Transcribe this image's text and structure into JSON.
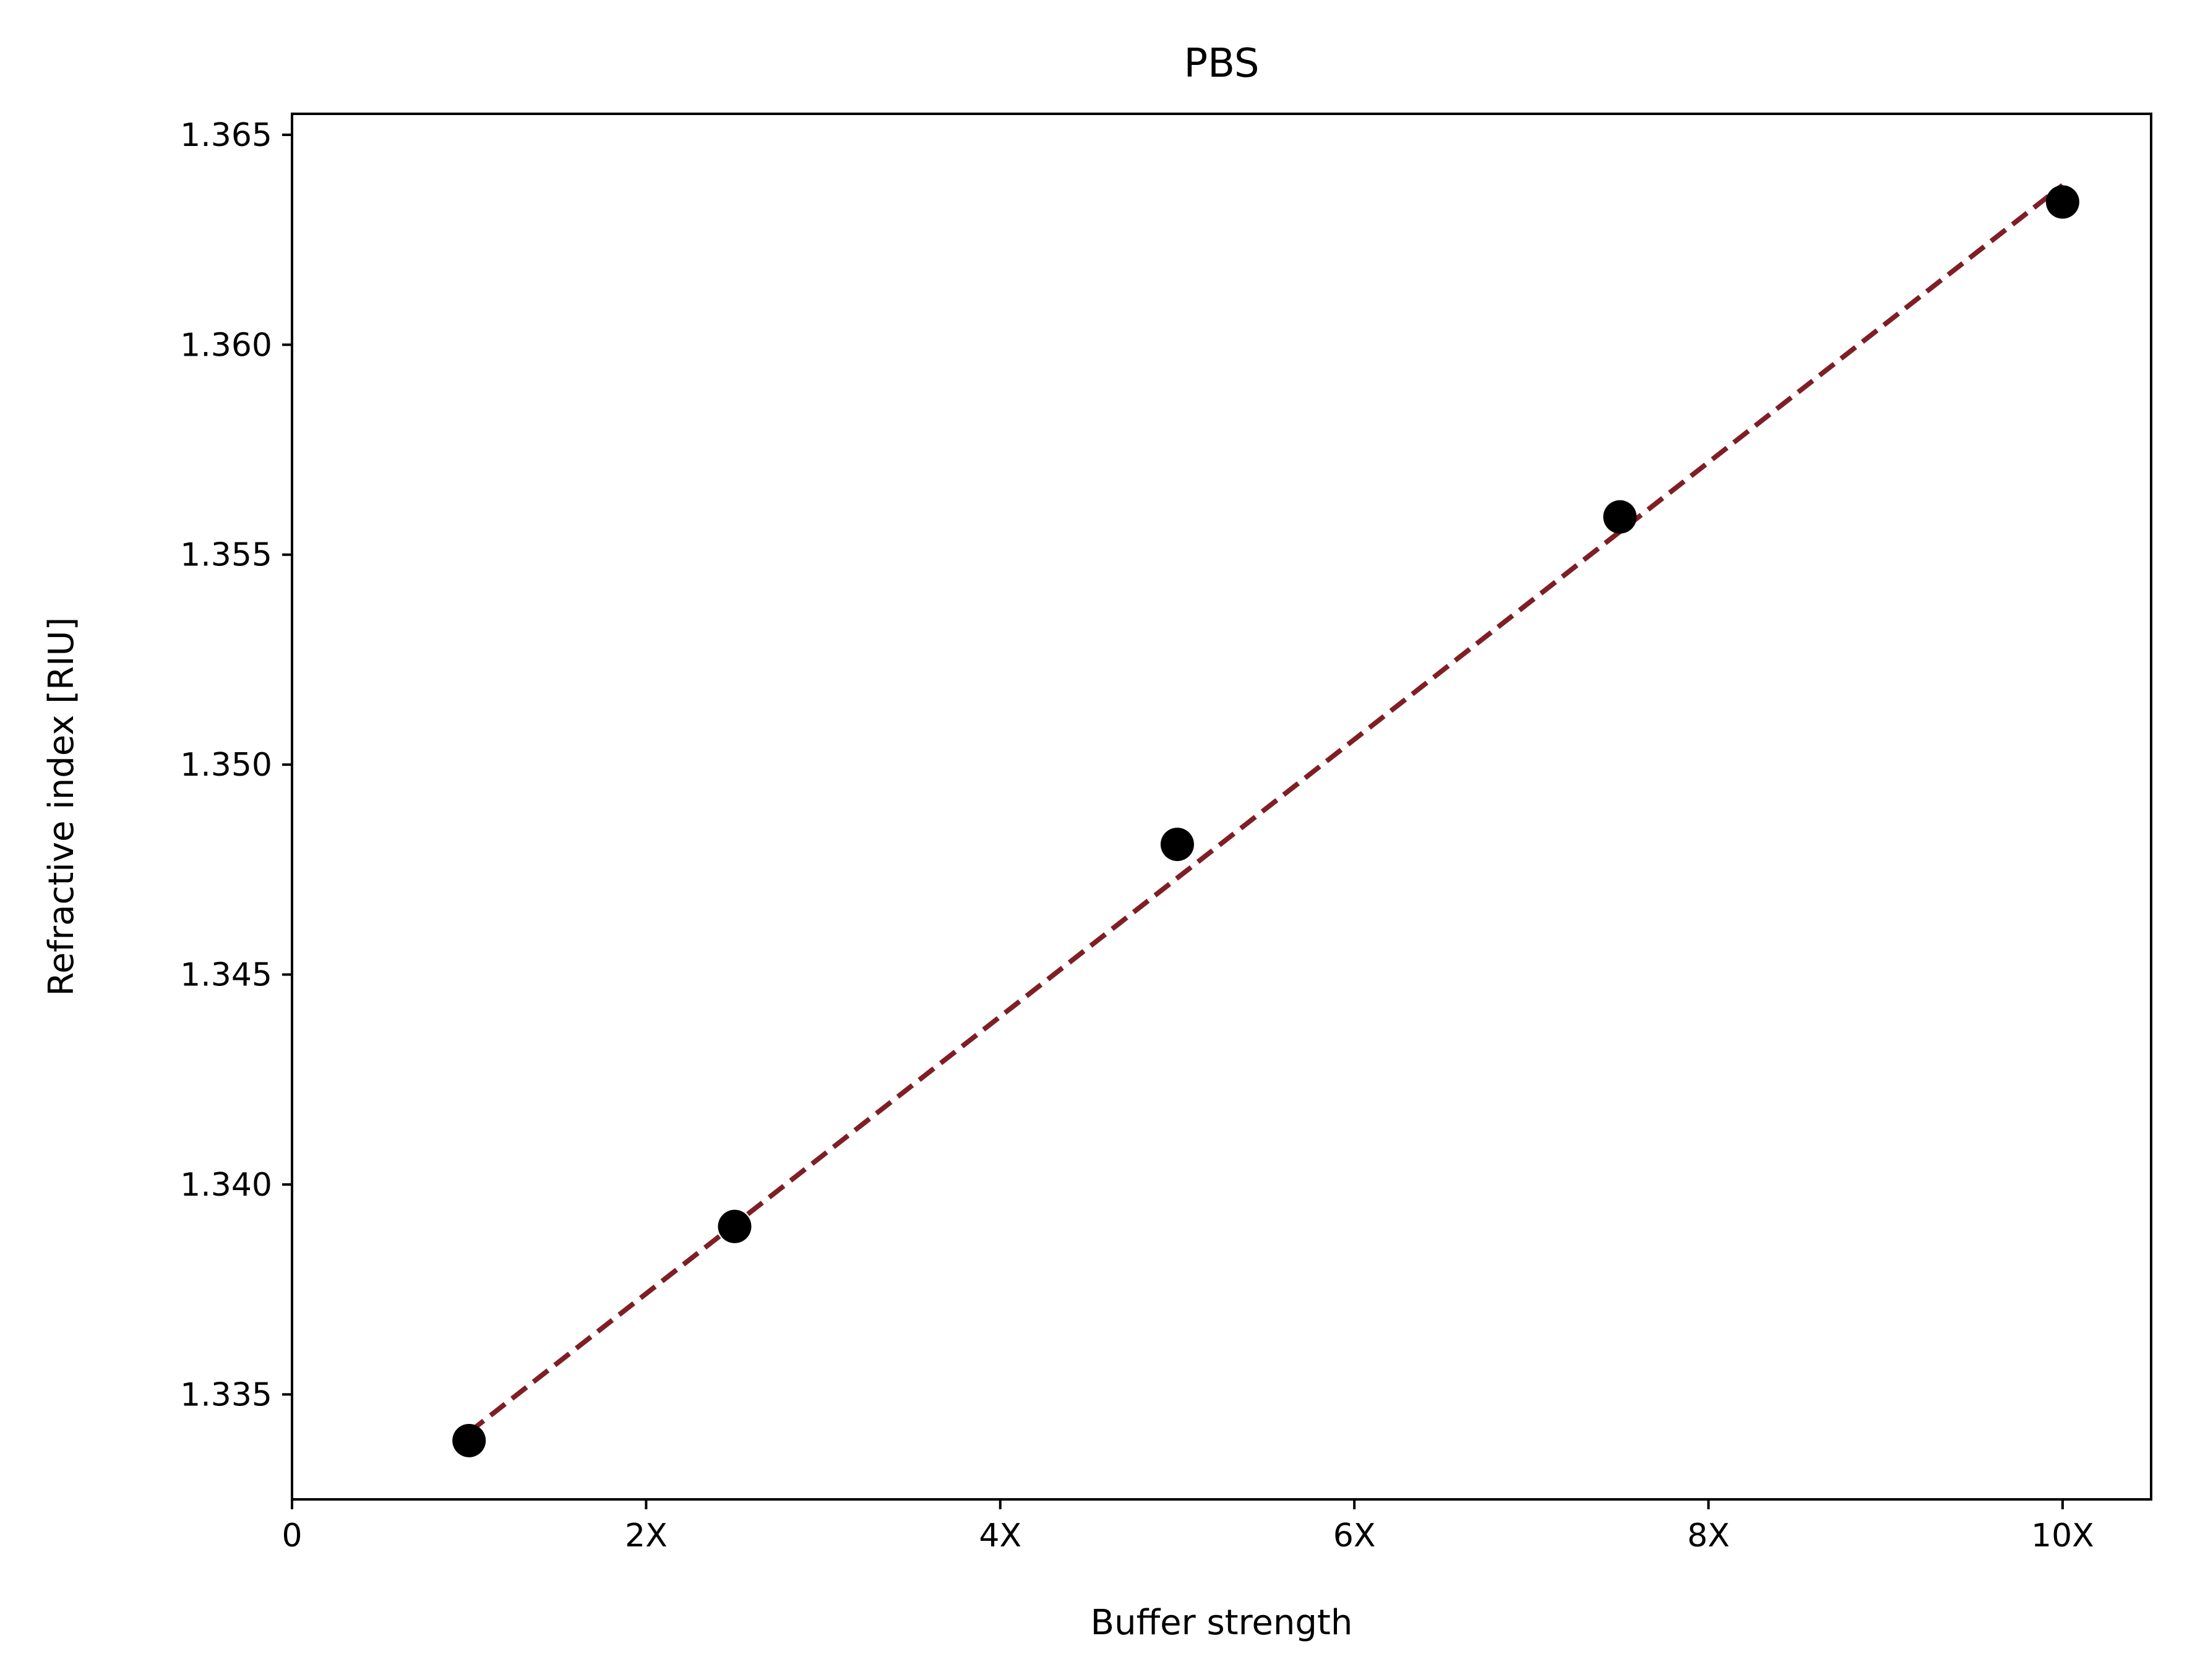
{
  "chart_data": {
    "type": "scatter",
    "title": "PBS",
    "xlabel": "Buffer strength",
    "ylabel": "Refractive index [RIU]",
    "xlim": [
      0,
      10.5
    ],
    "ylim": [
      1.3325,
      1.3655
    ],
    "x_ticks": [
      {
        "value": 0,
        "label": "0"
      },
      {
        "value": 2,
        "label": "2X"
      },
      {
        "value": 4,
        "label": "4X"
      },
      {
        "value": 6,
        "label": "6X"
      },
      {
        "value": 8,
        "label": "8X"
      },
      {
        "value": 10,
        "label": "10X"
      }
    ],
    "y_ticks": [
      {
        "value": 1.335,
        "label": "1.335"
      },
      {
        "value": 1.34,
        "label": "1.340"
      },
      {
        "value": 1.345,
        "label": "1.345"
      },
      {
        "value": 1.35,
        "label": "1.350"
      },
      {
        "value": 1.355,
        "label": "1.355"
      },
      {
        "value": 1.36,
        "label": "1.360"
      },
      {
        "value": 1.365,
        "label": "1.365"
      }
    ],
    "series": [
      {
        "type": "scatter",
        "color": "#000000",
        "points": [
          {
            "x": 1,
            "y": 1.3339
          },
          {
            "x": 2.5,
            "y": 1.339
          },
          {
            "x": 5,
            "y": 1.3481
          },
          {
            "x": 7.5,
            "y": 1.3559
          },
          {
            "x": 10,
            "y": 1.3634
          }
        ]
      },
      {
        "type": "line",
        "style": "dashed",
        "color": "#7f1f25",
        "points": [
          {
            "x": 1,
            "y": 1.3341
          },
          {
            "x": 10,
            "y": 1.3638
          }
        ]
      }
    ],
    "grid": false,
    "legend": "none"
  }
}
